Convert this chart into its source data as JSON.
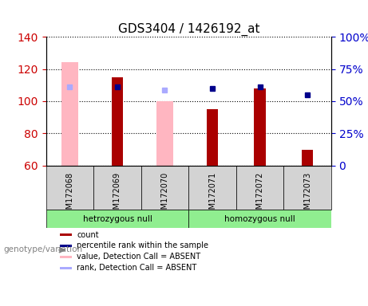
{
  "title": "GDS3404 / 1426192_at",
  "samples": [
    "GSM172068",
    "GSM172069",
    "GSM172070",
    "GSM172071",
    "GSM172072",
    "GSM172073"
  ],
  "ylim_left": [
    60,
    140
  ],
  "ylim_right": [
    0,
    100
  ],
  "yticks_left": [
    60,
    80,
    100,
    120,
    140
  ],
  "yticks_right": [
    0,
    25,
    50,
    75,
    100
  ],
  "red_bars": [
    null,
    115,
    null,
    95,
    108,
    70
  ],
  "pink_bars": [
    124,
    null,
    100,
    null,
    null,
    null
  ],
  "blue_dots": [
    null,
    109,
    null,
    108,
    109,
    104
  ],
  "light_blue_dots": [
    109,
    null,
    107,
    null,
    null,
    null
  ],
  "groups": [
    {
      "label": "hetrozygous null",
      "color": "#90ee90",
      "samples": [
        0,
        1,
        2
      ]
    },
    {
      "label": "homozygous null",
      "color": "#90ee90",
      "samples": [
        3,
        4,
        5
      ]
    }
  ],
  "group_labels": [
    "hetrozygous null",
    "homozygous null"
  ],
  "group_colors": [
    "#90ee90",
    "#90ee90"
  ],
  "bar_width": 0.35,
  "red_color": "#aa0000",
  "pink_color": "#ffb6c1",
  "blue_color": "#00008b",
  "light_blue_color": "#aaaaff",
  "legend_items": [
    {
      "label": "count",
      "color": "#aa0000",
      "type": "square"
    },
    {
      "label": "percentile rank within the sample",
      "color": "#00008b",
      "type": "square"
    },
    {
      "label": "value, Detection Call = ABSENT",
      "color": "#ffb6c1",
      "type": "square"
    },
    {
      "label": "rank, Detection Call = ABSENT",
      "color": "#aaaaff",
      "type": "square"
    }
  ],
  "xlabel": "genotype/variation",
  "left_axis_color": "#cc0000",
  "right_axis_color": "#0000cc",
  "plot_bg": "#ffffff",
  "label_area_bg": "#d3d3d3",
  "bottom_green_bg": "#90ee90"
}
